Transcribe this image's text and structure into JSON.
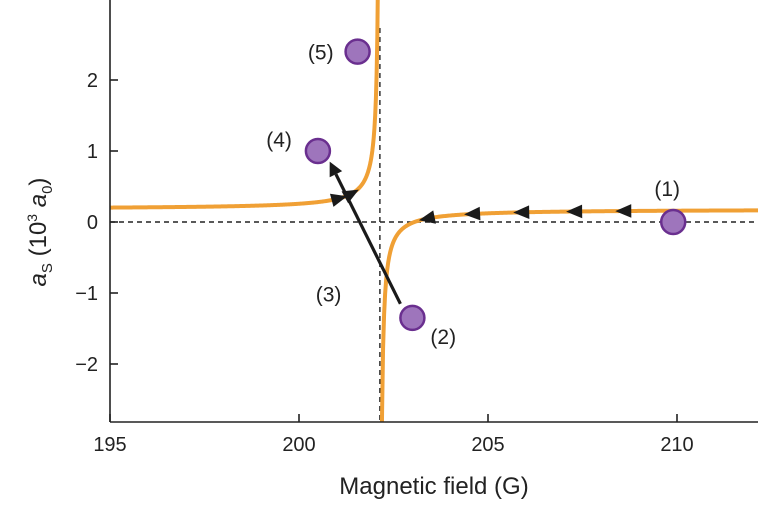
{
  "chart_data": {
    "type": "line",
    "xlabel": "Magnetic field (G)",
    "ylabel_main": "a",
    "ylabel_sub": "S",
    "ylabel_paren_open": " (10",
    "ylabel_sup": "3",
    "ylabel_a": " a",
    "ylabel_a_sub": "0",
    "ylabel_paren_close": ")",
    "xlim": [
      195,
      212
    ],
    "ylim": [
      -2.8,
      2.8
    ],
    "x_ticks": [
      {
        "value": 195,
        "label": "195"
      },
      {
        "value": 200,
        "label": "200"
      },
      {
        "value": 205,
        "label": "205"
      },
      {
        "value": 210,
        "label": "210"
      }
    ],
    "y_ticks": [
      {
        "value": 2,
        "label": "2"
      },
      {
        "value": 1,
        "label": "1"
      },
      {
        "value": 0,
        "label": "0"
      },
      {
        "value": -1,
        "label": "−1"
      },
      {
        "value": -2,
        "label": "−2"
      }
    ],
    "resonance": {
      "B0": 202.14,
      "background": 0.18,
      "width": 0.915
    },
    "reference_lines": {
      "horizontal_y": 0,
      "vertical_x": 202.14
    },
    "points": [
      {
        "label": "(1)",
        "x": 209.9,
        "y": 0.0
      },
      {
        "label": "(2)",
        "x": 203.0,
        "y": -1.35
      },
      {
        "label": "(3)",
        "x": 202.0,
        "y": -0.5
      },
      {
        "label": "(4)",
        "x": 200.5,
        "y": 1.0
      },
      {
        "label": "(5)",
        "x": 201.55,
        "y": 2.4
      }
    ],
    "ramp_arrows_right_branch": [
      208.6,
      207.3,
      205.9,
      204.6,
      203.4
    ],
    "ramp_arrows_left_branch": [
      201.05,
      201.38
    ],
    "jump": {
      "from_x": 203.0,
      "from_y": -1.35,
      "to_x": 200.6,
      "to_y": 0.85
    },
    "colors": {
      "curve": "#F0A035",
      "point_fill": "#9E75BC",
      "point_stroke": "#6A2F8F",
      "arrow": "#1a1a1a",
      "axis": "#222222"
    }
  }
}
